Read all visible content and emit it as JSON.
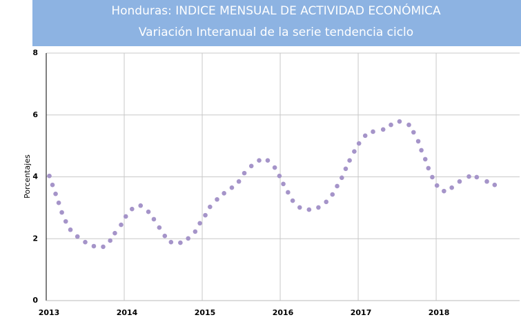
{
  "chart_data": {
    "type": "scatter",
    "title": "Honduras: INDICE MENSUAL DE ACTIVIDAD ECONÓMICA",
    "subtitle": "Variación Interanual de la serie tendencia ciclo",
    "ylabel": "Porcentajes",
    "color": "#a594c9",
    "grid": true,
    "xlim": [
      2013,
      2019.07
    ],
    "xticks": [
      2013,
      2014,
      2015,
      2016,
      2017,
      2018
    ],
    "ylim": [
      0,
      8
    ],
    "yticks": [
      0,
      2,
      4,
      6,
      8
    ],
    "x": [
      2013.04,
      2013.08,
      2013.12,
      2013.16,
      2013.2,
      2013.25,
      2013.31,
      2013.4,
      2013.5,
      2013.61,
      2013.73,
      2013.82,
      2013.88,
      2013.96,
      2014.02,
      2014.1,
      2014.21,
      2014.31,
      2014.38,
      2014.45,
      2014.52,
      2014.6,
      2014.72,
      2014.82,
      2014.91,
      2014.97,
      2015.04,
      2015.1,
      2015.19,
      2015.28,
      2015.38,
      2015.47,
      2015.54,
      2015.63,
      2015.73,
      2015.84,
      2015.93,
      2015.99,
      2016.04,
      2016.1,
      2016.16,
      2016.25,
      2016.37,
      2016.49,
      2016.59,
      2016.67,
      2016.73,
      2016.79,
      2016.84,
      2016.89,
      2016.95,
      2017.01,
      2017.09,
      2017.19,
      2017.32,
      2017.42,
      2017.53,
      2017.65,
      2017.71,
      2017.77,
      2017.81,
      2017.86,
      2017.9,
      2017.95,
      2018.01,
      2018.1,
      2018.2,
      2018.3,
      2018.42,
      2018.52,
      2018.65,
      2018.75
    ],
    "values": [
      4.03,
      3.74,
      3.45,
      3.16,
      2.85,
      2.56,
      2.29,
      2.07,
      1.89,
      1.76,
      1.74,
      1.94,
      2.18,
      2.45,
      2.72,
      2.96,
      3.07,
      2.87,
      2.63,
      2.36,
      2.09,
      1.89,
      1.87,
      2.01,
      2.23,
      2.5,
      2.76,
      3.03,
      3.27,
      3.47,
      3.65,
      3.85,
      4.12,
      4.35,
      4.53,
      4.53,
      4.3,
      4.03,
      3.77,
      3.5,
      3.23,
      3.01,
      2.94,
      3.01,
      3.19,
      3.43,
      3.7,
      3.97,
      4.26,
      4.53,
      4.82,
      5.08,
      5.33,
      5.46,
      5.53,
      5.68,
      5.79,
      5.68,
      5.44,
      5.15,
      4.86,
      4.57,
      4.28,
      3.99,
      3.72,
      3.54,
      3.65,
      3.85,
      4.01,
      3.99,
      3.85,
      3.74
    ]
  }
}
